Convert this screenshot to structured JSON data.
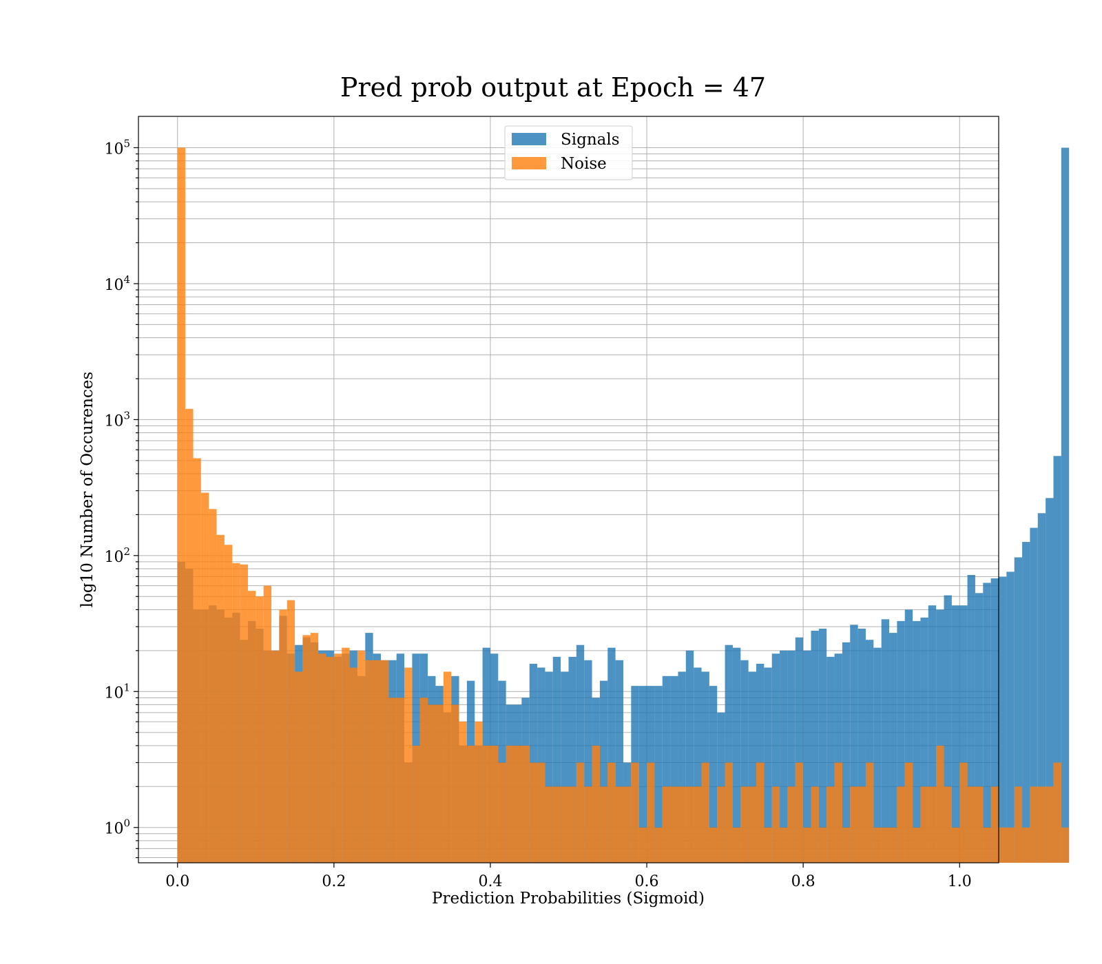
{
  "chart_data": {
    "type": "bar",
    "title": "Pred prob output at Epoch = 47",
    "xlabel": "Prediction Probabilities (Sigmoid)",
    "ylabel": "log10 Number of Occurences",
    "xlim": [
      -0.05,
      1.05
    ],
    "ylim": [
      0.55,
      170000
    ],
    "yscale": "log",
    "grid": true,
    "legend_position": "upper center",
    "x_ticks": [
      {
        "value": 0.0,
        "label": "0.0"
      },
      {
        "value": 0.2,
        "label": "0.2"
      },
      {
        "value": 0.4,
        "label": "0.4"
      },
      {
        "value": 0.6,
        "label": "0.6"
      },
      {
        "value": 0.8,
        "label": "0.8"
      },
      {
        "value": 1.0,
        "label": "1.0"
      }
    ],
    "y_ticks": [
      {
        "value": 1,
        "base": "10",
        "exp": "0"
      },
      {
        "value": 10,
        "base": "10",
        "exp": "1"
      },
      {
        "value": 100,
        "base": "10",
        "exp": "2"
      },
      {
        "value": 1000,
        "base": "10",
        "exp": "3"
      },
      {
        "value": 10000,
        "base": "10",
        "exp": "4"
      },
      {
        "value": 100000,
        "base": "10",
        "exp": "5"
      }
    ],
    "bin_start": 0.0,
    "bin_width": 0.01,
    "series": [
      {
        "name": "Signals",
        "color": "#1f77b4",
        "opacity": 0.8,
        "values": [
          90,
          80,
          40,
          40,
          43,
          40,
          35,
          38,
          24,
          33,
          29,
          20,
          20,
          36,
          19,
          22,
          25,
          23,
          20,
          20,
          18,
          19,
          20,
          13,
          27,
          19,
          17,
          17,
          19,
          3,
          19,
          19,
          13,
          11,
          7,
          13,
          4,
          12,
          4,
          21,
          19,
          12,
          8,
          8,
          9,
          16,
          15,
          14,
          18,
          14,
          18,
          22,
          17,
          9,
          12,
          21,
          17,
          3,
          11,
          11,
          11,
          11,
          13,
          13,
          14,
          20,
          15,
          14,
          11,
          7,
          22,
          21,
          17,
          14,
          16,
          15,
          19,
          20,
          20,
          25,
          20,
          28,
          29,
          18,
          19,
          23,
          31,
          29,
          24,
          21,
          34,
          27,
          33,
          40,
          33,
          35,
          43,
          40,
          51,
          43,
          43,
          72,
          53,
          63,
          68,
          70,
          76,
          97,
          126,
          160,
          205,
          265,
          540,
          100000
        ]
      },
      {
        "name": "Noise",
        "color": "#ff7f0e",
        "opacity": 0.8,
        "values": [
          100000,
          1200,
          520,
          290,
          220,
          142,
          120,
          88,
          86,
          55,
          50,
          60,
          20,
          40,
          47,
          14,
          26,
          27,
          19,
          18,
          19,
          21,
          15,
          20,
          17,
          17,
          17,
          9,
          9,
          15,
          4,
          9,
          8,
          8,
          14,
          8,
          6,
          4,
          6,
          4,
          4,
          3,
          4,
          4,
          4,
          3,
          3,
          2,
          2,
          2,
          2,
          3,
          2,
          4,
          2,
          3,
          2,
          2,
          3,
          1,
          3,
          1,
          2,
          2,
          2,
          2,
          2,
          3,
          1,
          2,
          3,
          1,
          2,
          2,
          3,
          1,
          2,
          1,
          2,
          3,
          1,
          2,
          1,
          2,
          3,
          1,
          2,
          2,
          3,
          1,
          1,
          1,
          2,
          3,
          1,
          2,
          2,
          4,
          2,
          1,
          3,
          2,
          2,
          1,
          2,
          1,
          1,
          2,
          1,
          2,
          2,
          2,
          3,
          1
        ]
      }
    ]
  }
}
